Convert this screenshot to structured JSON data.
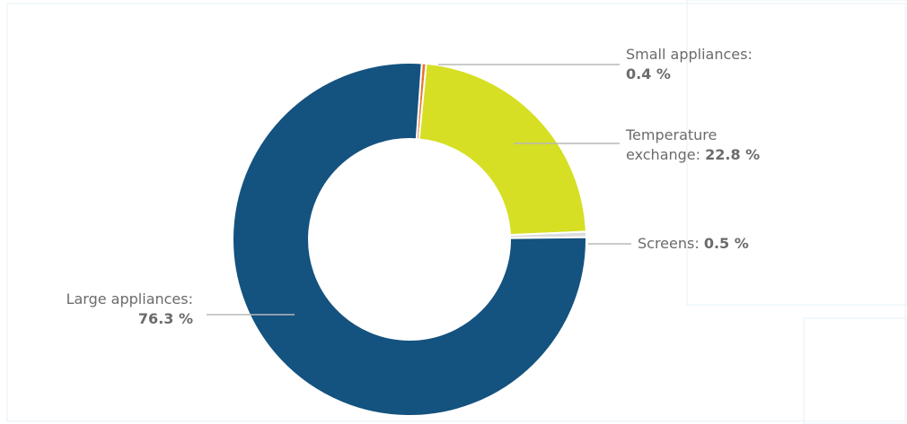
{
  "chart_data": {
    "type": "pie",
    "categories": [
      "Small appliances:",
      "Temperature exchange:",
      "Screens:",
      "Large appliances:"
    ],
    "values": [
      0.4,
      22.8,
      0.5,
      76.3
    ],
    "value_labels": [
      "0.4 %",
      "22.8 %",
      "0.5 %",
      "76.3 %"
    ],
    "colors": [
      "#e8762d",
      "#d6df23",
      "#dcdcdc",
      "#14527f"
    ],
    "donut": true
  }
}
